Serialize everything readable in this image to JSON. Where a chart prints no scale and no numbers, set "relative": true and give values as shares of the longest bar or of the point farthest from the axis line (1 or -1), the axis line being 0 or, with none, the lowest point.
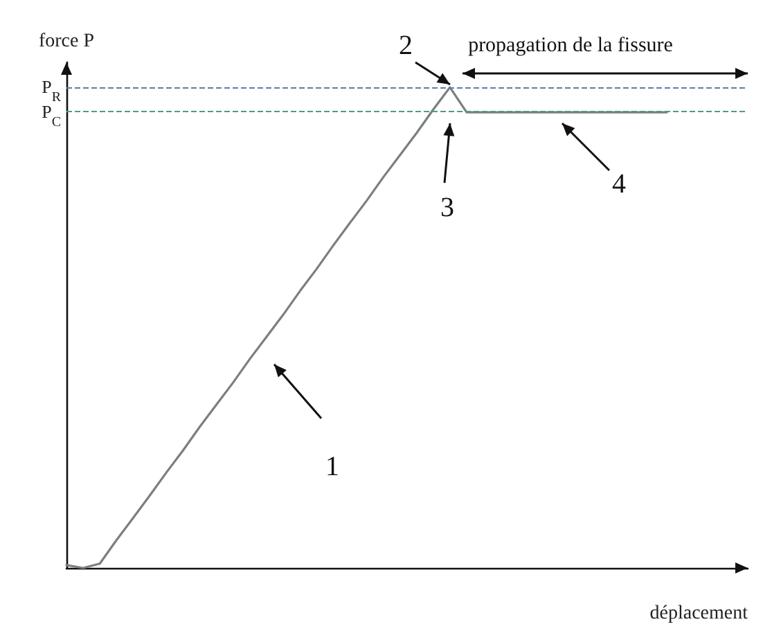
{
  "chart_data": {
    "type": "line",
    "relative": true,
    "xlabel": "déplacement",
    "ylabel": "force P",
    "color": "#7a7f80",
    "marker": "none",
    "line_style": "solid",
    "grid": false,
    "categories": [
      null,
      null,
      null,
      null,
      null,
      null,
      null,
      null,
      null,
      null,
      null,
      null,
      null,
      null,
      null,
      null,
      null,
      null,
      null,
      null,
      null,
      null,
      null,
      null,
      null,
      null,
      null,
      null,
      null,
      null,
      null,
      null,
      null,
      null,
      null,
      null,
      null
    ],
    "values": [
      0.006,
      0,
      0.009,
      0.058,
      0.104,
      0.151,
      0.199,
      0.245,
      0.294,
      0.34,
      0.386,
      0.435,
      0.481,
      0.527,
      0.576,
      0.622,
      0.671,
      0.718,
      0.764,
      0.813,
      0.859,
      0.905,
      0.954,
      1,
      0.948,
      0.948,
      0.948,
      0.948,
      0.948,
      0.948,
      0.948,
      0.948,
      0.948,
      0.948,
      0.948,
      0.948,
      0.948
    ],
    "ref_lines": [
      {
        "axis": "y",
        "value": 1,
        "label": "P$_{R}$",
        "color": "#5a7fa8",
        "line_style": "dashed"
      },
      {
        "axis": "y",
        "value": 0.948,
        "label": "P$_{C}$",
        "color": "#4f9a86",
        "line_style": "dashed"
      }
    ],
    "annotations": [
      "1",
      "2",
      "3",
      "4",
      "propagation de la fissure"
    ]
  }
}
